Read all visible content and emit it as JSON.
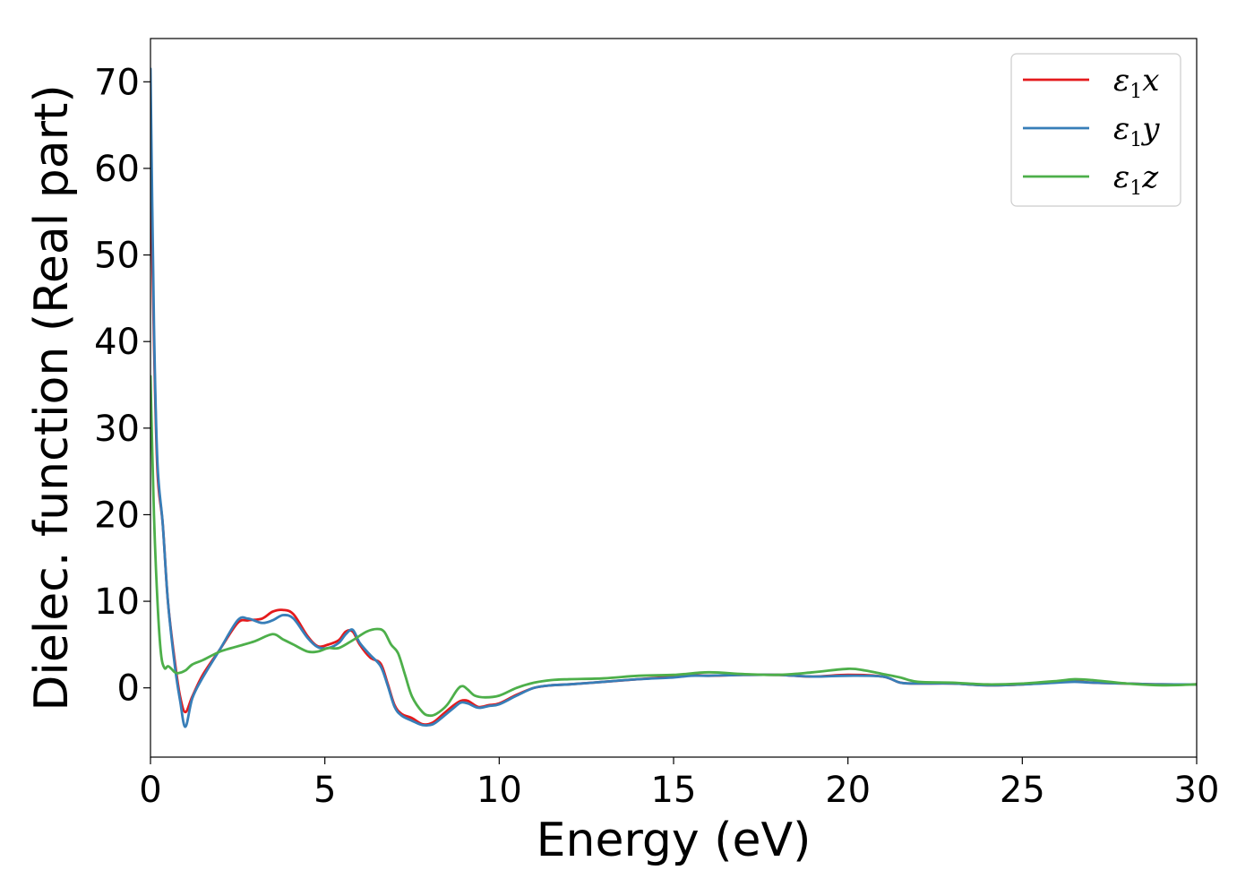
{
  "chart_data": {
    "type": "line",
    "title": "",
    "xlabel": "Energy (eV)",
    "ylabel": "Dielec. function (Real part)",
    "xlim": [
      0,
      30
    ],
    "ylim": [
      -8,
      75
    ],
    "xticks": [
      0,
      5,
      10,
      15,
      20,
      25,
      30
    ],
    "yticks": [
      0,
      10,
      20,
      30,
      40,
      50,
      60,
      70
    ],
    "grid": false,
    "legend_position": "top-right",
    "series": [
      {
        "name": "ε1x",
        "legend": {
          "base": "ε",
          "sub": "1",
          "suffix": "x"
        },
        "color": "#e41a1c",
        "x": [
          0,
          0.1,
          0.2,
          0.35,
          0.5,
          0.7,
          0.85,
          1.0,
          1.2,
          1.5,
          2.0,
          2.5,
          2.8,
          3.2,
          3.5,
          3.8,
          4.1,
          4.5,
          4.8,
          5.1,
          5.4,
          5.6,
          5.8,
          6.0,
          6.3,
          6.6,
          6.8,
          7.0,
          7.2,
          7.5,
          7.8,
          8.1,
          8.4,
          8.7,
          8.9,
          9.1,
          9.4,
          9.7,
          10.0,
          10.5,
          11.0,
          11.5,
          12.0,
          13.0,
          14.0,
          15.0,
          15.5,
          16.0,
          17.0,
          18.0,
          19.0,
          20.0,
          21.0,
          21.5,
          22.0,
          23.0,
          24.0,
          25.0,
          26.0,
          26.5,
          27.0,
          28.0,
          29.0,
          30.0
        ],
        "y": [
          62,
          40,
          25,
          19,
          10,
          3,
          -1,
          -2.8,
          -1,
          1.5,
          4.5,
          7.5,
          7.8,
          8,
          8.8,
          9,
          8.5,
          6,
          4.8,
          5,
          5.5,
          6.5,
          6.5,
          5,
          3.5,
          2.8,
          0.5,
          -2,
          -3,
          -3.5,
          -4.2,
          -4,
          -3,
          -2,
          -1.5,
          -1.5,
          -2.2,
          -2,
          -1.8,
          -0.8,
          0,
          0.3,
          0.4,
          0.7,
          1.0,
          1.3,
          1.5,
          1.4,
          1.5,
          1.5,
          1.3,
          1.5,
          1.3,
          0.6,
          0.5,
          0.5,
          0.3,
          0.4,
          0.7,
          0.8,
          0.6,
          0.5,
          0.4,
          0.4
        ]
      },
      {
        "name": "ε1y",
        "legend": {
          "base": "ε",
          "sub": "1",
          "suffix": "y"
        },
        "color": "#377eb8",
        "x": [
          0,
          0.1,
          0.2,
          0.35,
          0.5,
          0.7,
          0.85,
          1.0,
          1.2,
          1.5,
          2.0,
          2.5,
          2.8,
          3.2,
          3.5,
          3.8,
          4.1,
          4.5,
          4.8,
          5.1,
          5.4,
          5.6,
          5.8,
          6.0,
          6.3,
          6.6,
          6.8,
          7.0,
          7.2,
          7.5,
          7.8,
          8.1,
          8.4,
          8.7,
          8.9,
          9.1,
          9.4,
          9.7,
          10.0,
          10.5,
          11.0,
          11.5,
          12.0,
          13.0,
          14.0,
          15.0,
          15.5,
          16.0,
          17.0,
          18.0,
          19.0,
          20.0,
          21.0,
          21.5,
          22.0,
          23.0,
          24.0,
          25.0,
          26.0,
          26.5,
          27.0,
          28.0,
          29.0,
          30.0
        ],
        "y": [
          71.5,
          42,
          26,
          19,
          10,
          2.5,
          -1.5,
          -4.5,
          -1.2,
          1.2,
          4.5,
          7.8,
          8,
          7.5,
          7.8,
          8.4,
          8,
          5.8,
          4.7,
          4.6,
          5.2,
          6.2,
          6.7,
          5.2,
          3.8,
          2.5,
          0.3,
          -2.2,
          -3.2,
          -3.8,
          -4.3,
          -4.2,
          -3.3,
          -2.3,
          -1.7,
          -1.8,
          -2.3,
          -2.1,
          -1.9,
          -0.9,
          0,
          0.3,
          0.4,
          0.7,
          1.0,
          1.2,
          1.4,
          1.4,
          1.5,
          1.5,
          1.3,
          1.4,
          1.3,
          0.6,
          0.5,
          0.5,
          0.3,
          0.4,
          0.6,
          0.7,
          0.6,
          0.5,
          0.4,
          0.4
        ]
      },
      {
        "name": "ε1z",
        "legend": {
          "base": "ε",
          "sub": "1",
          "suffix": "z"
        },
        "color": "#4daf4a",
        "x": [
          0,
          0.1,
          0.2,
          0.3,
          0.4,
          0.5,
          0.6,
          0.7,
          0.8,
          1.0,
          1.2,
          1.5,
          2.0,
          2.5,
          3.0,
          3.5,
          3.8,
          4.1,
          4.5,
          4.8,
          5.1,
          5.4,
          5.8,
          6.2,
          6.5,
          6.7,
          6.9,
          7.1,
          7.3,
          7.5,
          7.8,
          8.0,
          8.2,
          8.5,
          8.8,
          8.95,
          9.1,
          9.3,
          9.6,
          10.0,
          10.5,
          11.0,
          11.5,
          12.0,
          13.0,
          14.0,
          15.0,
          16.0,
          17.0,
          18.0,
          19.0,
          20.0,
          20.5,
          21.0,
          21.5,
          22.0,
          23.0,
          24.0,
          25.0,
          26.0,
          26.5,
          27.0,
          28.0,
          29.0,
          30.0
        ],
        "y": [
          36,
          20,
          10,
          4,
          2.3,
          2.5,
          2.2,
          1.8,
          1.7,
          2.0,
          2.7,
          3.2,
          4.2,
          4.8,
          5.4,
          6.2,
          5.6,
          5.0,
          4.2,
          4.2,
          4.6,
          4.6,
          5.5,
          6.5,
          6.8,
          6.5,
          5.0,
          4.0,
          1.5,
          -1.0,
          -2.8,
          -3.2,
          -3.0,
          -2.0,
          -0.2,
          0.2,
          -0.2,
          -0.9,
          -1.1,
          -0.9,
          0,
          0.6,
          0.9,
          1.0,
          1.1,
          1.4,
          1.5,
          1.8,
          1.6,
          1.5,
          1.8,
          2.2,
          2.0,
          1.6,
          1.2,
          0.7,
          0.6,
          0.4,
          0.5,
          0.8,
          1.0,
          0.9,
          0.5,
          0.3,
          0.4
        ]
      }
    ]
  }
}
